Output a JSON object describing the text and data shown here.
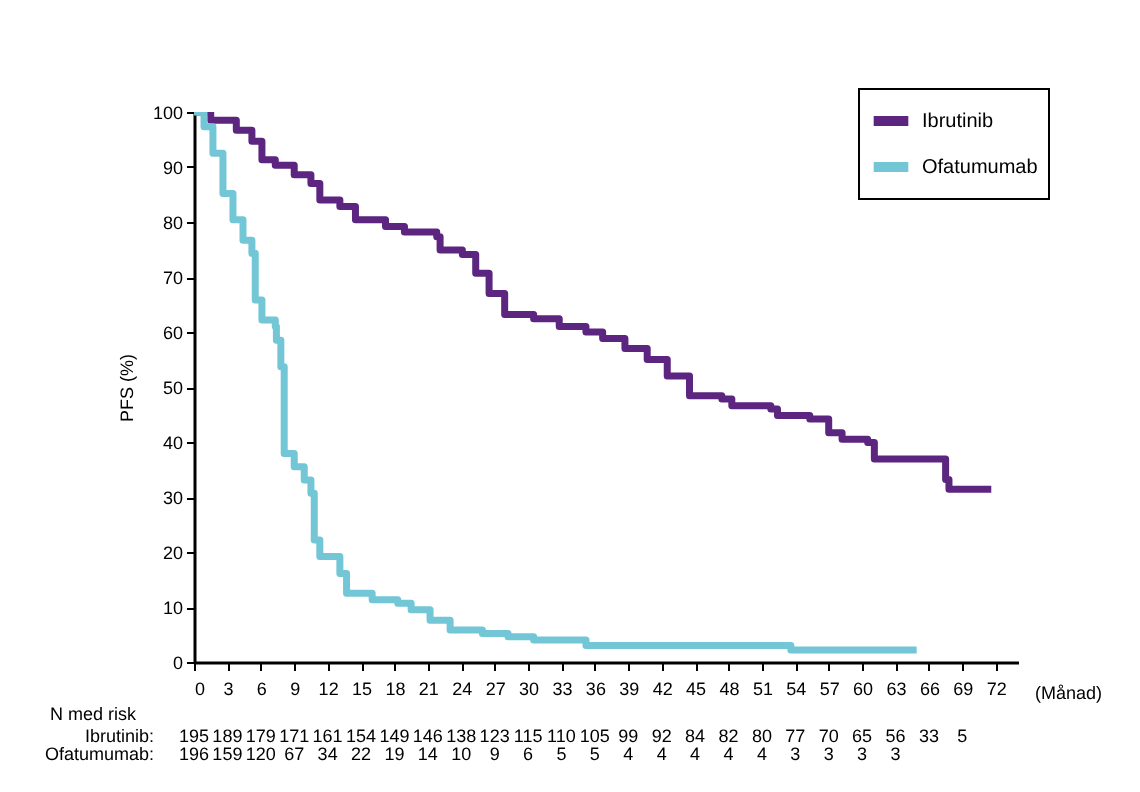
{
  "chart_data": {
    "type": "step",
    "ylabel": "PFS (%)",
    "xlabel": "(Månad)",
    "xlim": [
      0,
      74
    ],
    "ylim": [
      0,
      100
    ],
    "xticks": [
      0,
      3,
      6,
      9,
      12,
      15,
      18,
      21,
      24,
      27,
      30,
      33,
      36,
      39,
      42,
      45,
      48,
      51,
      54,
      57,
      60,
      63,
      66,
      69,
      72
    ],
    "yticks": [
      0,
      10,
      20,
      30,
      40,
      50,
      60,
      70,
      80,
      90,
      100
    ],
    "grid": false,
    "legend": "top right",
    "annotations": [
      "N med risk",
      "Ibrutinib:",
      "195 189 179 171 161 154 149 146 138 123 115 110 105 99 92 84 82 80 77 70 65 56 33 5",
      "Ofatumumab:",
      "196 159 120 67 34 22 19 14 10 9 6 5 5 4 4 4 4 4 3 3 3 3"
    ],
    "series": [
      {
        "name": "Ibrutinib",
        "color": "#5c2580",
        "x": [
          0,
          1.5,
          3.8,
          5.2,
          6.1,
          7.3,
          9,
          10.5,
          11.3,
          13.1,
          14.5,
          17.2,
          18.9,
          21.8,
          22.1,
          24.1,
          25.3,
          26.5,
          27.9,
          30.5,
          32.8,
          35.2,
          36.7,
          38.7,
          40.7,
          42.5,
          44.5,
          47.4,
          48.3,
          51.8,
          52.4,
          55.3,
          57,
          58.2,
          60.5,
          61.1,
          67.5,
          67.8,
          71.6
        ],
        "values": [
          100,
          98.5,
          96.7,
          94.7,
          91.3,
          90.3,
          88.6,
          87,
          84,
          82.8,
          80.4,
          79.2,
          78.2,
          77.3,
          74.9,
          74.1,
          70.7,
          67,
          63.2,
          62.4,
          61,
          60,
          58.8,
          57,
          55,
          52,
          48.4,
          47.8,
          46.6,
          46,
          44.8,
          44.2,
          41.7,
          40.5,
          39.9,
          36.9,
          33.2,
          31.4,
          31.4
        ]
      },
      {
        "name": "Ofatumumab",
        "color": "#72c6d5",
        "x": [
          0,
          0.9,
          1.7,
          2.6,
          3.5,
          4.4,
          5.2,
          5.5,
          6.1,
          7.3,
          7.4,
          7.8,
          8.1,
          9,
          9.9,
          10.5,
          10.8,
          11.3,
          13.1,
          13.7,
          16,
          18.3,
          19.5,
          21.2,
          23,
          25.9,
          28.2,
          30.5,
          35.2,
          53.6,
          64.9
        ],
        "values": [
          100,
          97.3,
          92.5,
          85.2,
          80.4,
          76.7,
          74.3,
          65.8,
          62.2,
          61,
          58.5,
          53.7,
          37.9,
          35.5,
          33.1,
          30.7,
          22.2,
          19.2,
          16.1,
          12.5,
          11.3,
          10.7,
          9.5,
          7.6,
          5.8,
          5.2,
          4.6,
          4,
          3,
          2.2,
          2.2
        ]
      }
    ]
  }
}
